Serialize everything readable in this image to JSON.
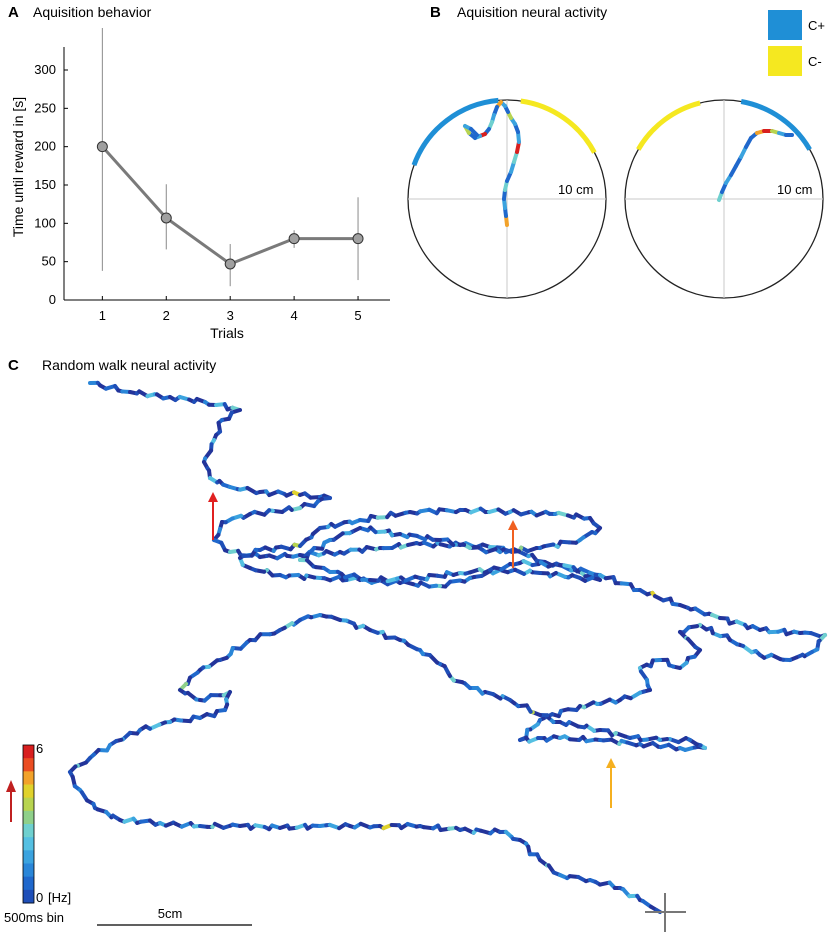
{
  "panels": {
    "A": {
      "letter": "A",
      "title": "Aquisition behavior"
    },
    "B": {
      "letter": "B",
      "title": "Aquisition neural activity"
    },
    "C": {
      "letter": "C",
      "title": "Random walk neural activity"
    }
  },
  "chart_data": [
    {
      "id": "A",
      "type": "line",
      "xlabel": "Trials",
      "ylabel": "Time until reward in [s]",
      "x": [
        1,
        2,
        3,
        4,
        5
      ],
      "xticks": [
        1,
        2,
        3,
        4,
        5
      ],
      "yticks": [
        0,
        50,
        100,
        150,
        200,
        250,
        300
      ],
      "ylim": [
        0,
        330
      ],
      "xlim": [
        0.4,
        5.5
      ],
      "series": [
        {
          "values": [
            200,
            107,
            47,
            80,
            80
          ],
          "error_low": [
            38,
            66,
            18,
            68,
            26
          ],
          "error_high": [
            365,
            151,
            73,
            91,
            134
          ],
          "color": "#7a7a7a",
          "marker_color": "#a0a0a0"
        }
      ],
      "grid": false
    },
    {
      "id": "B",
      "type": "line",
      "description_labels": {
        "scale": "10 cm"
      },
      "legend": {
        "placement": "top-right",
        "entries": [
          {
            "label": "C+",
            "color": "#1f8fd6"
          },
          {
            "label": "C-",
            "color": "#f5e820"
          }
        ]
      },
      "arenas": [
        {
          "scale_label": "10 cm",
          "track": [
            [
              0,
              -26
            ],
            [
              -1,
              -17
            ],
            [
              -2,
              -9
            ],
            [
              -3,
              0
            ],
            [
              -2,
              9
            ],
            [
              0,
              18
            ],
            [
              4,
              27
            ],
            [
              7,
              37
            ],
            [
              10,
              47
            ],
            [
              12,
              57
            ],
            [
              11,
              67
            ],
            [
              8,
              75
            ],
            [
              4,
              81
            ],
            [
              1,
              87
            ],
            [
              -2,
              93
            ],
            [
              -6,
              97
            ],
            [
              -10,
              92
            ],
            [
              -13,
              84
            ],
            [
              -15,
              77
            ],
            [
              -18,
              70
            ],
            [
              -22,
              65
            ],
            [
              -27,
              63
            ],
            [
              -32,
              61
            ],
            [
              -38,
              66
            ],
            [
              -42,
              73
            ],
            [
              -36,
              70
            ],
            [
              -30,
              64
            ]
          ],
          "track_hz": [
            5,
            1,
            2,
            1,
            3,
            1,
            2,
            3,
            6,
            2,
            1,
            2,
            4,
            1,
            2,
            5,
            1,
            2,
            3,
            1,
            6,
            2,
            1,
            4,
            2,
            1,
            3
          ]
        },
        {
          "scale_label": "10 cm",
          "track": [
            [
              -5,
              -1
            ],
            [
              -2,
              7
            ],
            [
              2,
              16
            ],
            [
              7,
              24
            ],
            [
              12,
              33
            ],
            [
              17,
              42
            ],
            [
              22,
              52
            ],
            [
              27,
              61
            ],
            [
              33,
              66
            ],
            [
              40,
              68
            ],
            [
              48,
              68
            ],
            [
              55,
              66
            ],
            [
              62,
              64
            ],
            [
              68,
              64
            ]
          ],
          "track_hz": [
            3,
            1,
            2,
            1,
            1,
            2,
            1,
            1,
            5,
            6,
            4,
            2,
            1,
            2
          ]
        }
      ]
    },
    {
      "id": "C",
      "type": "line",
      "colorbar": {
        "min_label": "0",
        "max_label": "6",
        "unit": "[Hz]",
        "bin_label": "500ms bin",
        "levels": 12
      },
      "scale_bar_label": "5cm",
      "track_hz_pattern": [
        0,
        1,
        0,
        2,
        1,
        0,
        3,
        0,
        1,
        0,
        5,
        1,
        0,
        2,
        0,
        1,
        4,
        0,
        1,
        0,
        3,
        0,
        2,
        1,
        0,
        6,
        0,
        1,
        0,
        2
      ],
      "arrows": [
        {
          "color": "#e02020"
        },
        {
          "color": "#f06020"
        },
        {
          "color": "#f5b020"
        }
      ]
    }
  ]
}
